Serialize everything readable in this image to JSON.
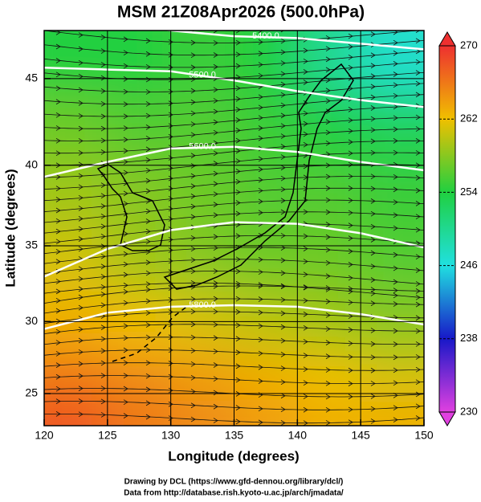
{
  "chart_data": {
    "type": "map",
    "title": "MSM 21Z08Apr2026 (500.0hPa)",
    "xlabel": "Longitude (degrees)",
    "ylabel": "Latitude  (degrees)",
    "projection": "mercator",
    "xlim": [
      120,
      150
    ],
    "ylim": [
      22.7,
      47.6
    ],
    "xticks": [
      120,
      125,
      130,
      135,
      140,
      145,
      150
    ],
    "yticks": [
      25,
      30,
      35,
      40,
      45
    ],
    "grid": true,
    "field": {
      "lon": [
        122.5,
        127.5,
        132.5,
        137.5,
        142.5,
        147.5
      ],
      "lat": [
        46,
        42,
        38,
        34,
        30,
        26,
        23
      ],
      "values": [
        [
          254,
          254,
          255,
          254,
          250,
          247
        ],
        [
          257,
          256,
          256,
          255,
          254,
          253
        ],
        [
          259,
          258,
          257,
          256,
          256,
          255
        ],
        [
          261,
          259,
          258,
          257,
          257,
          256
        ],
        [
          263,
          262,
          261,
          260,
          259,
          258
        ],
        [
          266,
          265,
          264,
          263,
          262,
          261
        ],
        [
          268,
          266,
          265,
          264,
          263,
          263
        ]
      ]
    },
    "contours": [
      {
        "label": "5400.0",
        "x": [
          126,
          130,
          135,
          140,
          145,
          150
        ],
        "y": [
          48.0,
          47.6,
          47.3,
          47.2,
          46.9,
          46.6
        ]
      },
      {
        "label": "5500.0",
        "x": [
          120,
          125,
          130,
          135,
          140,
          145,
          150
        ],
        "y": [
          45.6,
          45.5,
          45.4,
          44.9,
          44.3,
          43.8,
          43.4
        ]
      },
      {
        "label": "5600.0",
        "x": [
          120,
          125,
          130,
          135,
          140,
          145,
          150
        ],
        "y": [
          39.3,
          40.2,
          41.0,
          41.1,
          40.8,
          40.2,
          39.7
        ]
      },
      {
        "x": [
          120,
          125,
          130,
          135,
          140,
          145,
          150
        ],
        "y": [
          33.0,
          34.8,
          36.0,
          36.5,
          36.4,
          35.8,
          34.9
        ]
      },
      {
        "label": "5800.0",
        "x": [
          120,
          125,
          130,
          135,
          140,
          145,
          150
        ],
        "y": [
          29.5,
          30.6,
          31.0,
          31.1,
          31.0,
          30.5,
          29.8
        ]
      }
    ],
    "colorbar": {
      "lim": [
        230,
        270
      ],
      "ticks": [
        230,
        238,
        246,
        254,
        262,
        270
      ],
      "colors": [
        "#e040e0",
        "#1818c8",
        "#20e0e0",
        "#20d040",
        "#f0c000",
        "#ee3030"
      ]
    },
    "credits": [
      "Drawing by DCL (https://www.gfd-dennou.org/library/dcl/)",
      "Data from http://database.rish.kyoto-u.ac.jp/arch/jmadata/"
    ]
  }
}
